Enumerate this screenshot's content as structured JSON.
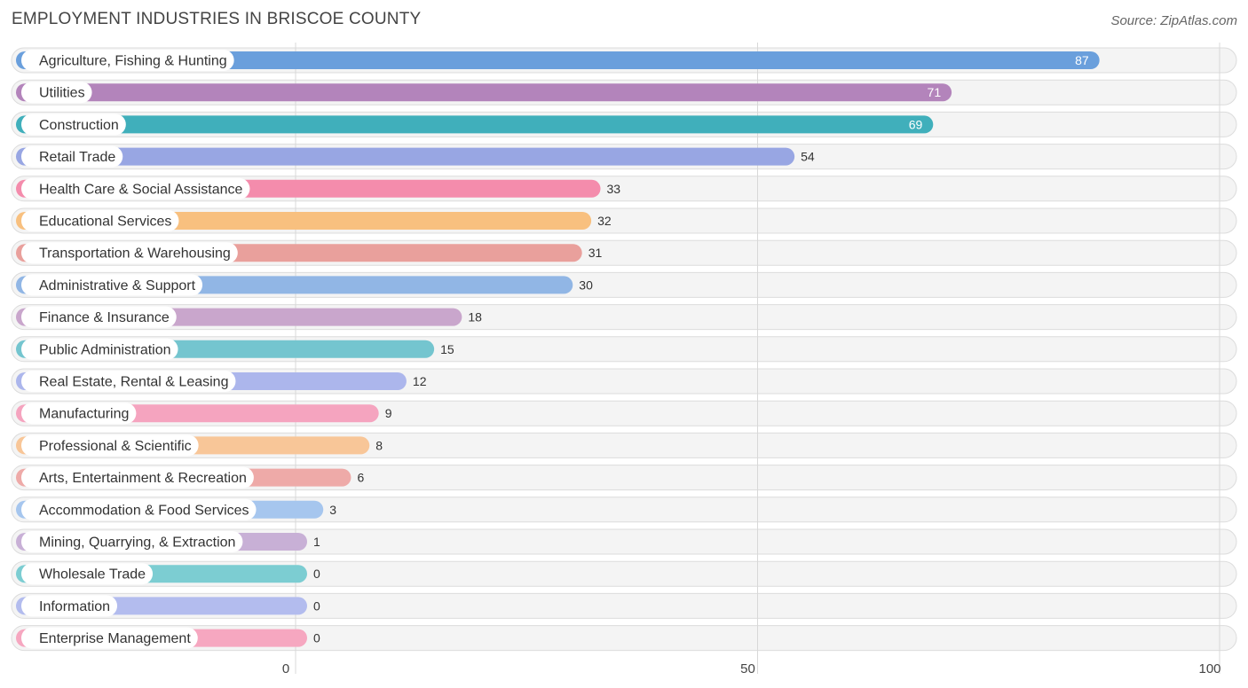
{
  "header": {
    "title": "EMPLOYMENT INDUSTRIES IN BRISCOE COUNTY",
    "source": "Source: ZipAtlas.com"
  },
  "chart_data": {
    "type": "bar",
    "orientation": "horizontal",
    "title": "EMPLOYMENT INDUSTRIES IN BRISCOE COUNTY",
    "xlabel": "",
    "ylabel": "",
    "xlim": [
      0,
      100
    ],
    "xticks": [
      0,
      50,
      100
    ],
    "grid": true,
    "categories": [
      "Agriculture, Fishing & Hunting",
      "Utilities",
      "Construction",
      "Retail Trade",
      "Health Care & Social Assistance",
      "Educational Services",
      "Transportation & Warehousing",
      "Administrative & Support",
      "Finance & Insurance",
      "Public Administration",
      "Real Estate, Rental & Leasing",
      "Manufacturing",
      "Professional & Scientific",
      "Arts, Entertainment & Recreation",
      "Accommodation & Food Services",
      "Mining, Quarrying, & Extraction",
      "Wholesale Trade",
      "Information",
      "Enterprise Management"
    ],
    "values": [
      87,
      71,
      69,
      54,
      33,
      32,
      31,
      30,
      18,
      15,
      12,
      9,
      8,
      6,
      3,
      1,
      0,
      0,
      0
    ],
    "colors": [
      "#6a9fdc",
      "#b384bb",
      "#40afbb",
      "#98a6e3",
      "#f48cac",
      "#f8c07f",
      "#e9a09c",
      "#91b6e5",
      "#c9a6cc",
      "#74c5cf",
      "#acb6ec",
      "#f5a4bf",
      "#f8c698",
      "#eeaaa8",
      "#a6c6ee",
      "#c8b0d6",
      "#7ccdd2",
      "#b3bcee",
      "#f6a7c0"
    ]
  }
}
